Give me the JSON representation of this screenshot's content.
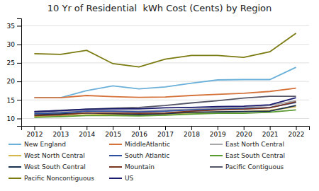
{
  "chart_data": {
    "type": "line",
    "title": "10 Yr of Residential  kWh Cost (Cents) by Region",
    "x": [
      2012,
      2013,
      2014,
      2015,
      2016,
      2017,
      2018,
      2019,
      2020,
      2021,
      2022
    ],
    "series": [
      {
        "name": "New England",
        "color": "#6ab0d8",
        "values": [
          15.6,
          15.6,
          17.5,
          18.8,
          18.0,
          18.5,
          19.5,
          20.4,
          20.5,
          20.5,
          23.8
        ]
      },
      {
        "name": "MiddleAtlantic",
        "color": "#d4723a",
        "values": [
          15.6,
          15.6,
          16.2,
          15.9,
          15.7,
          15.8,
          16.2,
          16.5,
          16.8,
          17.3,
          18.2
        ]
      },
      {
        "name": "East North Central",
        "color": "#a8a8a8",
        "values": [
          11.5,
          11.7,
          12.2,
          12.1,
          12.0,
          12.3,
          12.5,
          12.8,
          13.0,
          13.5,
          14.8
        ]
      },
      {
        "name": "West North Central",
        "color": "#d4b84a",
        "values": [
          10.5,
          10.7,
          11.0,
          11.1,
          11.0,
          11.2,
          11.5,
          11.8,
          11.9,
          12.2,
          13.2
        ]
      },
      {
        "name": "South Atlantic",
        "color": "#2e4fa0",
        "values": [
          11.3,
          11.5,
          12.0,
          12.0,
          11.8,
          12.0,
          12.3,
          12.5,
          12.7,
          13.0,
          14.3
        ]
      },
      {
        "name": "East South Central",
        "color": "#5a9a30",
        "values": [
          10.3,
          10.5,
          10.8,
          10.8,
          10.7,
          10.9,
          11.2,
          11.4,
          11.4,
          11.7,
          12.3
        ]
      },
      {
        "name": "West South Central",
        "color": "#1a3050",
        "values": [
          11.0,
          11.2,
          11.5,
          11.3,
          11.1,
          11.3,
          11.7,
          11.8,
          11.9,
          12.0,
          13.5
        ]
      },
      {
        "name": "Mountain",
        "color": "#7a3520",
        "values": [
          10.8,
          11.0,
          11.5,
          11.5,
          11.4,
          11.5,
          12.0,
          12.3,
          12.5,
          12.9,
          14.5
        ]
      },
      {
        "name": "Pacific Contiguous",
        "color": "#555568",
        "values": [
          11.8,
          12.2,
          12.5,
          12.8,
          13.0,
          13.5,
          14.2,
          14.8,
          15.5,
          16.0,
          16.0
        ]
      },
      {
        "name": "Pacific Noncontiguous",
        "color": "#7a7a10",
        "values": [
          27.5,
          27.3,
          28.4,
          24.8,
          23.9,
          26.0,
          27.0,
          27.0,
          26.5,
          28.0,
          33.0
        ]
      },
      {
        "name": "US",
        "color": "#1a1a6e",
        "values": [
          11.9,
          12.1,
          12.5,
          12.6,
          12.6,
          12.9,
          13.0,
          13.2,
          13.3,
          13.7,
          15.6
        ]
      }
    ],
    "xlim": [
      2011.5,
      2022.5
    ],
    "xticks": [
      2012,
      2013,
      2014,
      2015,
      2016,
      2017,
      2018,
      2019,
      2020,
      2021,
      2022
    ],
    "ylim": [
      8,
      37
    ],
    "yticks": [
      10,
      15,
      20,
      25,
      30,
      35
    ],
    "grid": true,
    "legend": "bottom"
  }
}
